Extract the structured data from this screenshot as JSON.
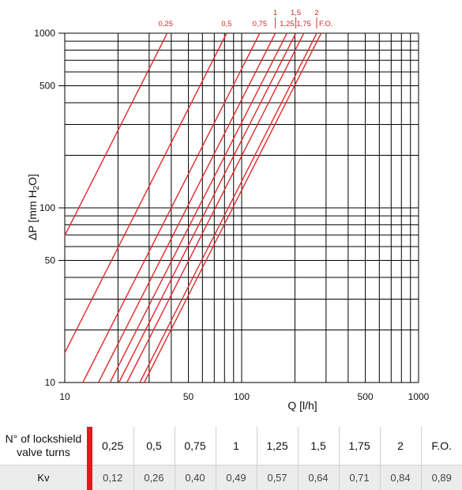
{
  "chart_data": {
    "type": "line",
    "xscale": "log",
    "yscale": "log",
    "xlim": [
      10,
      1000
    ],
    "ylim": [
      10,
      1000
    ],
    "xlabel": "Q [l/h]",
    "ylabel_main": "ΔP [mm H",
    "ylabel_sub": "2",
    "ylabel_end": "O]",
    "x_ticks": [
      {
        "value": 10,
        "label": "10"
      },
      {
        "value": 50,
        "label": "50"
      },
      {
        "value": 100,
        "label": "100"
      },
      {
        "value": 500,
        "label": "500"
      },
      {
        "value": 1000,
        "label": "1000"
      }
    ],
    "y_ticks": [
      {
        "value": 10,
        "label": "10"
      },
      {
        "value": 50,
        "label": "50"
      },
      {
        "value": 100,
        "label": "100"
      },
      {
        "value": 500,
        "label": "500"
      },
      {
        "value": 1000,
        "label": "1000"
      }
    ],
    "series": [
      {
        "name": "0,25",
        "kv": 0.12
      },
      {
        "name": "0,5",
        "kv": 0.26
      },
      {
        "name": "0,75",
        "kv": 0.4
      },
      {
        "name": "1",
        "kv": 0.49
      },
      {
        "name": "1,25",
        "kv": 0.57
      },
      {
        "name": "1,5",
        "kv": 0.64
      },
      {
        "name": "1,75",
        "kv": 0.71
      },
      {
        "name": "2",
        "kv": 0.84
      },
      {
        "name": "F.O.",
        "kv": 0.89
      }
    ],
    "grid": true,
    "color": "#e12a2a"
  },
  "table": {
    "row1_header": [
      "N° of lockshield",
      "valve turns"
    ],
    "row1_values": [
      "0,25",
      "0,5",
      "0,75",
      "1",
      "1,25",
      "1,5",
      "1,75",
      "2",
      "F.O."
    ],
    "row2_header": "Kv",
    "row2_values": [
      "0,12",
      "0,26",
      "0,40",
      "0,49",
      "0,57",
      "0,64",
      "0,71",
      "0,84",
      "0,89"
    ],
    "accent_color": "#e11b1b"
  }
}
